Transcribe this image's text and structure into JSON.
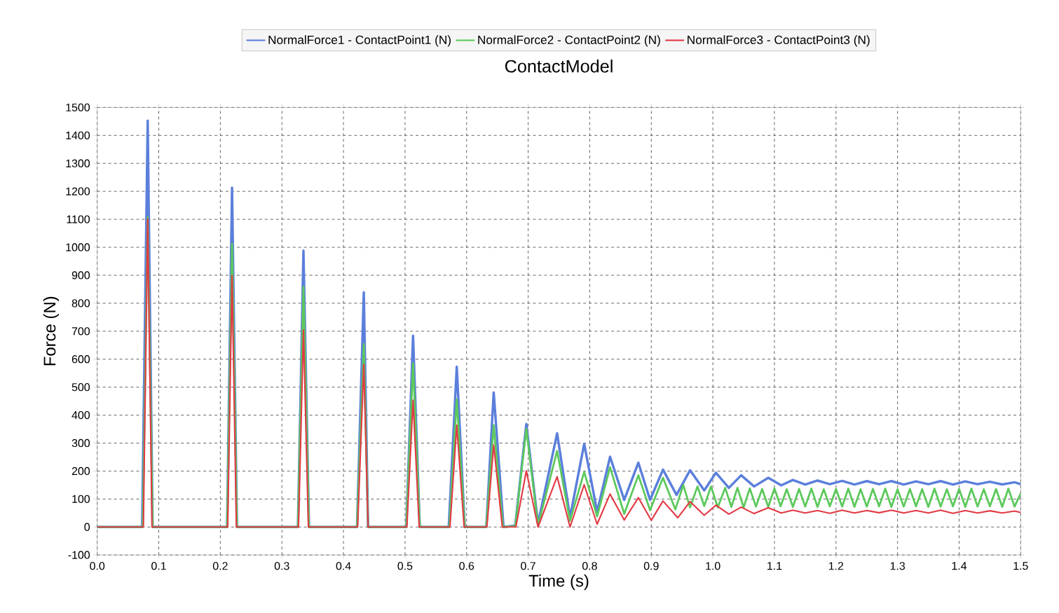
{
  "chart_data": {
    "type": "line",
    "title": "ContactModel",
    "xlabel": "Time (s)",
    "ylabel": "Force (N)",
    "xlim": [
      0,
      1.5
    ],
    "ylim": [
      -100,
      1500
    ],
    "xticks": [
      {
        "value": 0,
        "label": "0.0"
      },
      0.1,
      0.2,
      0.3,
      0.4,
      0.5,
      0.6,
      0.7,
      0.8,
      0.9,
      {
        "value": 1,
        "label": "1.0"
      },
      1.1,
      1.2,
      1.3,
      1.4,
      1.5
    ],
    "yticks": [
      -100,
      0,
      100,
      200,
      300,
      400,
      500,
      600,
      700,
      800,
      900,
      1000,
      1100,
      1200,
      1300,
      1400,
      1500
    ],
    "grid": true,
    "legend": "top",
    "line_style": "solid",
    "series": [
      {
        "name": "NormalForce1 - ContactPoint1 (N)",
        "color": "#5b7fdb",
        "x": [
          0,
          0.073,
          0.082,
          0.09,
          0.211,
          0.219,
          0.227,
          0.326,
          0.335,
          0.344,
          0.422,
          0.433,
          0.44,
          0.502,
          0.513,
          0.524,
          0.571,
          0.584,
          0.597,
          0.632,
          0.644,
          0.66,
          0.679,
          0.697,
          0.716,
          0.747,
          0.768,
          0.791,
          0.812,
          0.833,
          0.856,
          0.879,
          0.898,
          0.919,
          0.941,
          0.963,
          0.986,
          1.005,
          1.026,
          1.046,
          1.067,
          1.09,
          1.111,
          1.13,
          1.15,
          1.17,
          1.19,
          1.21,
          1.23,
          1.25,
          1.27,
          1.29,
          1.31,
          1.33,
          1.35,
          1.37,
          1.39,
          1.41,
          1.43,
          1.45,
          1.47,
          1.49,
          1.5
        ],
        "values": [
          0,
          0,
          1453,
          0,
          0,
          1213,
          0,
          0,
          988,
          0,
          0,
          839,
          0,
          0,
          684,
          0,
          0,
          573,
          0,
          0,
          481,
          0,
          5,
          368,
          12,
          335,
          35,
          297,
          55,
          251,
          97,
          230,
          97,
          205,
          115,
          203,
          131,
          194,
          140,
          185,
          145,
          176,
          149,
          168,
          152,
          166,
          153,
          165,
          152,
          164,
          153,
          164,
          152,
          163,
          153,
          164,
          152,
          163,
          153,
          162,
          152,
          160,
          153
        ]
      },
      {
        "name": "NormalForce2 - ContactPoint2 (N)",
        "color": "#5cc95c",
        "x": [
          0,
          0.074,
          0.082,
          0.09,
          0.211,
          0.219,
          0.227,
          0.326,
          0.335,
          0.344,
          0.422,
          0.433,
          0.44,
          0.502,
          0.513,
          0.524,
          0.572,
          0.584,
          0.597,
          0.632,
          0.644,
          0.659,
          0.679,
          0.697,
          0.716,
          0.747,
          0.768,
          0.791,
          0.812,
          0.833,
          0.856,
          0.879,
          0.898,
          0.919,
          0.939,
          0.952,
          0.963,
          0.975,
          0.986,
          0.997,
          1.008,
          1.02,
          1.03,
          1.04,
          1.05,
          1.06,
          1.07,
          1.08,
          1.09,
          1.1,
          1.11,
          1.12,
          1.13,
          1.14,
          1.15,
          1.16,
          1.17,
          1.18,
          1.19,
          1.2,
          1.21,
          1.22,
          1.23,
          1.24,
          1.25,
          1.26,
          1.27,
          1.28,
          1.29,
          1.3,
          1.31,
          1.32,
          1.33,
          1.34,
          1.35,
          1.36,
          1.37,
          1.38,
          1.39,
          1.4,
          1.41,
          1.42,
          1.43,
          1.44,
          1.45,
          1.46,
          1.47,
          1.48,
          1.49,
          1.5
        ],
        "values": [
          0,
          0,
          1107,
          0,
          0,
          1013,
          0,
          0,
          859,
          0,
          0,
          654,
          0,
          0,
          585,
          0,
          0,
          456,
          0,
          0,
          364,
          0,
          3,
          351,
          5,
          272,
          22,
          197,
          38,
          214,
          47,
          185,
          60,
          176,
          63,
          150,
          70,
          145,
          75,
          145,
          70,
          140,
          72,
          140,
          70,
          138,
          73,
          136,
          72,
          138,
          74,
          135,
          72,
          136,
          73,
          137,
          72,
          135,
          74,
          136,
          73,
          137,
          72,
          135,
          73,
          136,
          74,
          137,
          72,
          135,
          73,
          136,
          74,
          135,
          72,
          137,
          73,
          135,
          74,
          136,
          72,
          137,
          73,
          135,
          74,
          136,
          72,
          137,
          73,
          120
        ]
      },
      {
        "name": "NormalForce3 - ContactPoint3 (N)",
        "color": "#e23a45",
        "x": [
          0,
          0.075,
          0.082,
          0.089,
          0.212,
          0.219,
          0.226,
          0.327,
          0.335,
          0.343,
          0.423,
          0.433,
          0.44,
          0.503,
          0.513,
          0.523,
          0.573,
          0.584,
          0.596,
          0.633,
          0.644,
          0.658,
          0.68,
          0.697,
          0.716,
          0.747,
          0.768,
          0.791,
          0.812,
          0.833,
          0.856,
          0.879,
          0.9,
          0.919,
          0.943,
          0.963,
          0.986,
          1.005,
          1.026,
          1.046,
          1.067,
          1.09,
          1.111,
          1.13,
          1.15,
          1.17,
          1.19,
          1.21,
          1.23,
          1.25,
          1.27,
          1.29,
          1.31,
          1.33,
          1.35,
          1.37,
          1.39,
          1.41,
          1.43,
          1.45,
          1.47,
          1.49,
          1.5
        ],
        "values": [
          0,
          0,
          1102,
          0,
          0,
          899,
          0,
          0,
          704,
          0,
          0,
          581,
          0,
          0,
          453,
          0,
          0,
          364,
          0,
          0,
          293,
          0,
          0,
          201,
          0,
          180,
          0,
          151,
          10,
          118,
          25,
          105,
          24,
          93,
          33,
          91,
          42,
          78,
          46,
          71,
          48,
          69,
          50,
          60,
          50,
          59,
          49,
          60,
          50,
          59,
          51,
          60,
          50,
          59,
          50,
          60,
          49,
          59,
          50,
          58,
          50,
          57,
          52
        ]
      }
    ]
  }
}
